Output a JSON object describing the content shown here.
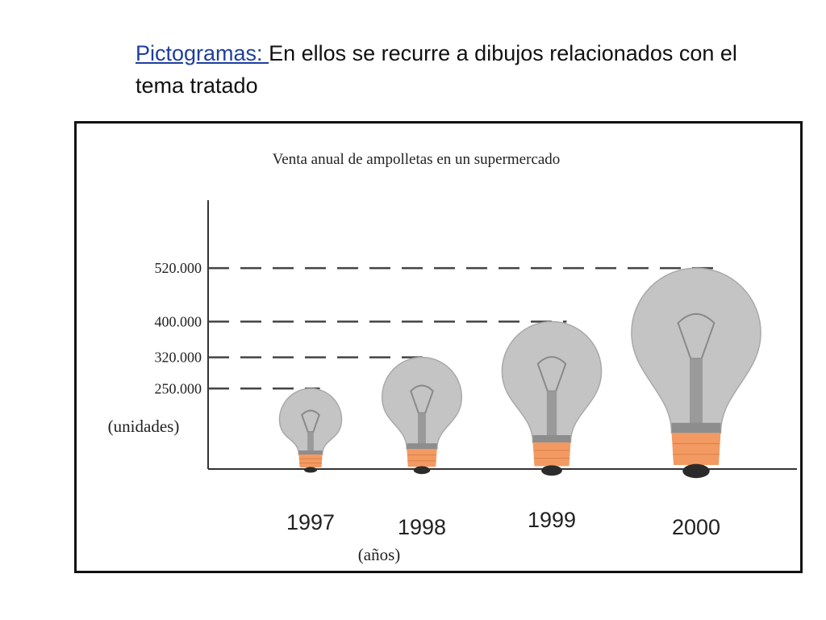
{
  "heading": {
    "link_text": "Pictogramas: ",
    "text": "En ellos se recurre a dibujos relacionados con el tema tratado"
  },
  "colors": {
    "bulb_glass": "#c4c4c4",
    "bulb_glass_edge": "#a9a9a9",
    "bulb_base": "#f39a62",
    "bulb_tip": "#2b2b2b",
    "axis": "#333333",
    "dash": "#444444"
  },
  "chart_data": {
    "type": "pictogram",
    "title": "Venta anual de ampolletas en un supermercado",
    "xlabel": "(años)",
    "ylabel": "(unidades)",
    "categories": [
      "1997",
      "1998",
      "1999",
      "2000"
    ],
    "values": [
      250000,
      320000,
      400000,
      520000
    ],
    "value_labels": [
      "250.000",
      "320.000",
      "400.000",
      "520.000"
    ],
    "icon": "light-bulb-icon",
    "reference_lines": "dashed",
    "grid": false
  }
}
